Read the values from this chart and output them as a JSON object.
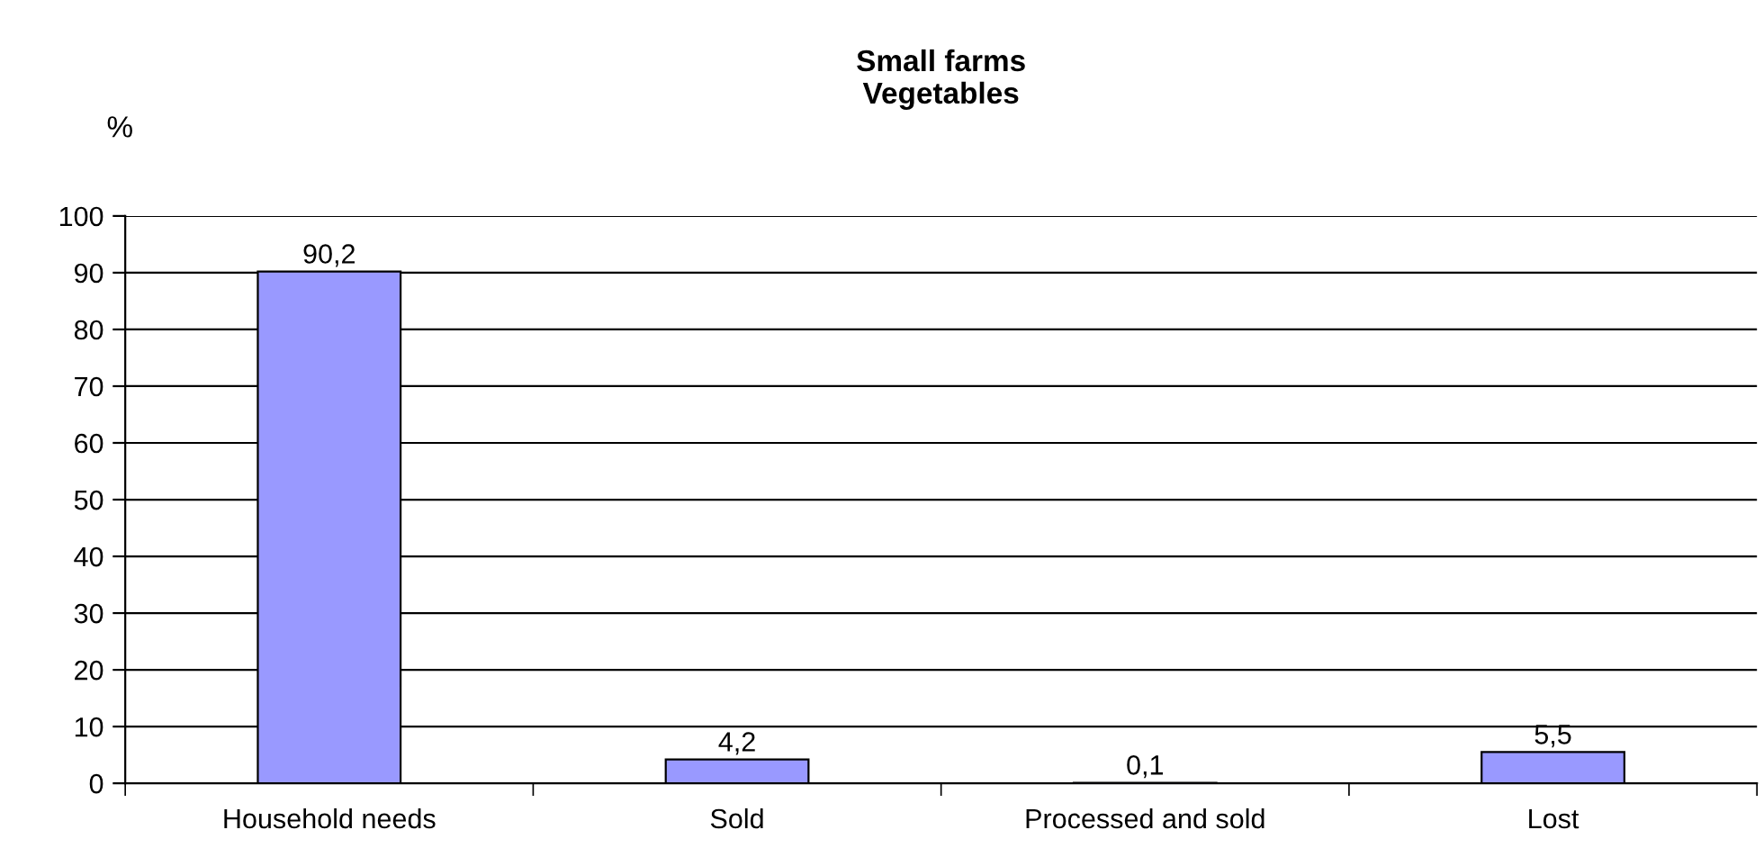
{
  "chart_data": {
    "type": "bar",
    "title": "Small farms\nVegetables",
    "ylabel": "%",
    "categories": [
      "Household needs",
      "Sold",
      "Processed and sold",
      "Lost"
    ],
    "values": [
      90.2,
      4.2,
      0.1,
      5.5
    ],
    "value_labels": [
      "90,2",
      "4,2",
      "0,1",
      "5,5"
    ],
    "color": "#9999ff",
    "ylim": [
      0,
      100
    ],
    "yticks": [
      0,
      10,
      20,
      30,
      40,
      50,
      60,
      70,
      80,
      90,
      100
    ],
    "grid": "y",
    "legend": false
  }
}
